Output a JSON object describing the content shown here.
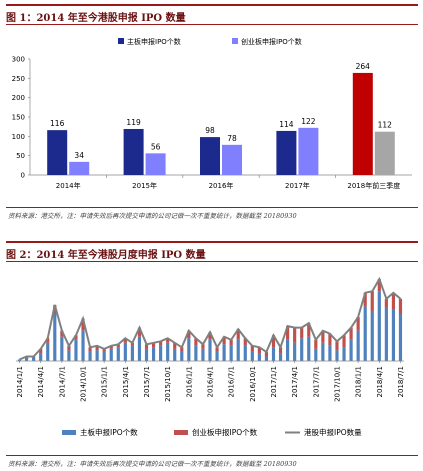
{
  "figure1": {
    "title": "图 1：2014 年至今港股申报 IPO 数量",
    "source": "资料来源：港交所，注：申请失效后再次提交申请的公司记做一次不重复统计，数据截至 20180930",
    "chart_data": {
      "type": "bar",
      "categories": [
        "2014年",
        "2015年",
        "2016年",
        "2017年",
        "2018年前三季度"
      ],
      "series": [
        {
          "name": "主板申报IPO个数",
          "values": [
            116,
            119,
            98,
            114,
            264
          ],
          "colors": [
            "#1b2a8c",
            "#1b2a8c",
            "#1b2a8c",
            "#1b2a8c",
            "#c00000"
          ]
        },
        {
          "name": "创业板申报IPO个数",
          "values": [
            34,
            56,
            78,
            122,
            112
          ],
          "colors": [
            "#8080ff",
            "#8080ff",
            "#8080ff",
            "#8080ff",
            "#a6a6a6"
          ]
        }
      ],
      "ylim": [
        0,
        300
      ],
      "yticks": [
        0,
        50,
        100,
        150,
        200,
        250,
        300
      ],
      "legend_position": "top",
      "grid": false
    }
  },
  "figure2": {
    "title": "图 2：2014 年至今港股月度申报 IPO 数量",
    "source": "资料来源：港交所，注：申请失效后再次提交申请的公司记做一次不重复统计，数据截至 20180930",
    "chart_data": {
      "type": "bar",
      "x_labels": [
        "2014/1/1",
        "2014/4/1",
        "2014/7/1",
        "2014/10/1",
        "2015/1/1",
        "2015/4/1",
        "2015/7/1",
        "2015/10/1",
        "2016/1/1",
        "2016/4/1",
        "2016/7/1",
        "2016/10/1",
        "2017/1/1",
        "2017/4/1",
        "2017/7/1",
        "2017/10/1",
        "2018/1/1",
        "2018/4/1",
        "2018/7/1"
      ],
      "ylim": [
        0,
        60
      ],
      "series": [
        {
          "name": "主板申报IPO个数",
          "type": "bar",
          "color": "#4f81bd",
          "values": [
            1,
            2,
            2,
            5,
            12,
            31,
            16,
            7,
            14,
            20,
            6,
            7,
            6,
            8,
            9,
            12,
            10,
            16,
            8,
            9,
            10,
            12,
            8,
            6,
            15,
            10,
            8,
            14,
            6,
            11,
            10,
            14,
            10,
            6,
            5,
            3,
            9,
            5,
            14,
            12,
            15,
            16,
            8,
            12,
            10,
            7,
            9,
            14,
            20,
            36,
            33,
            46,
            35,
            34,
            31
          ]
        },
        {
          "name": "创业板申报IPO个数",
          "type": "bar",
          "color": "#c0504d",
          "values": [
            0,
            1,
            1,
            3,
            3,
            6,
            4,
            3,
            3,
            8,
            3,
            3,
            2,
            2,
            2,
            3,
            2,
            6,
            3,
            3,
            3,
            3,
            4,
            3,
            5,
            5,
            3,
            5,
            3,
            5,
            4,
            7,
            5,
            4,
            4,
            3,
            8,
            4,
            9,
            10,
            7,
            9,
            6,
            8,
            8,
            6,
            8,
            8,
            9,
            9,
            13,
            8,
            6,
            11,
            10
          ]
        },
        {
          "name": "港股申报IPO数量",
          "type": "line",
          "color": "#808080",
          "values": [
            1,
            3,
            3,
            8,
            15,
            37,
            20,
            10,
            17,
            28,
            9,
            10,
            8,
            10,
            11,
            15,
            12,
            22,
            11,
            12,
            13,
            15,
            12,
            9,
            20,
            15,
            11,
            19,
            9,
            16,
            14,
            21,
            15,
            10,
            9,
            6,
            17,
            9,
            23,
            22,
            22,
            25,
            14,
            20,
            18,
            13,
            17,
            22,
            29,
            45,
            46,
            54,
            41,
            45,
            41
          ]
        }
      ],
      "legend_position": "bottom",
      "grid": false
    }
  }
}
